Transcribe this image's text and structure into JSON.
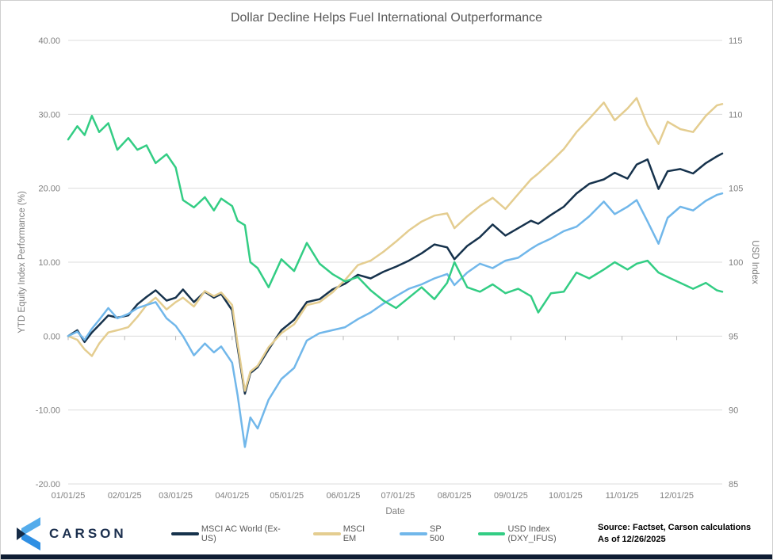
{
  "chart": {
    "title": "Dollar Decline Helps Fuel International Outperformance"
  },
  "chart_data": {
    "type": "line",
    "title": "Dollar Decline Helps Fuel International Outperformance",
    "grid": "horizontal",
    "legend_position": "bottom",
    "x_axis": {
      "label": "Date",
      "tick_labels": [
        "01/01/25",
        "02/01/25",
        "03/01/25",
        "04/01/25",
        "05/01/25",
        "06/01/25",
        "07/01/25",
        "08/01/25",
        "09/01/25",
        "10/01/25",
        "11/01/25",
        "12/01/25"
      ],
      "tick_days": [
        0,
        31,
        59,
        90,
        120,
        151,
        181,
        212,
        243,
        273,
        304,
        334
      ],
      "max_day": 359
    },
    "left_axis": {
      "label": "YTD Equity Index Performance (%)",
      "min": -20,
      "max": 40,
      "ticks": [
        40,
        30,
        20,
        10,
        0,
        -10,
        -20
      ],
      "decimals": 2
    },
    "right_axis": {
      "label": "USD Index",
      "min": 85,
      "max": 115,
      "ticks": [
        115,
        110,
        105,
        100,
        95,
        90,
        85
      ],
      "decimals": 0
    },
    "days": [
      0,
      5,
      9,
      13,
      17,
      22,
      27,
      33,
      38,
      43,
      48,
      54,
      59,
      63,
      69,
      75,
      80,
      84,
      90,
      93,
      97,
      100,
      104,
      110,
      117,
      124,
      131,
      138,
      145,
      152,
      159,
      166,
      173,
      180,
      187,
      194,
      201,
      208,
      212,
      219,
      226,
      233,
      240,
      247,
      254,
      258,
      265,
      272,
      279,
      286,
      294,
      300,
      307,
      312,
      318,
      324,
      329,
      336,
      343,
      350,
      356,
      359
    ],
    "series": [
      {
        "name": "MSCI AC World (Ex-US)",
        "axis": "left",
        "color": "#16324c",
        "values": [
          0,
          0.8,
          -0.8,
          0.5,
          1.5,
          2.8,
          2.5,
          2.8,
          4.3,
          5.3,
          6.2,
          4.8,
          5.2,
          6.3,
          4.6,
          6.0,
          5.2,
          5.7,
          3.5,
          -1.5,
          -7.8,
          -5.0,
          -4.2,
          -1.8,
          0.8,
          2.2,
          4.6,
          5.0,
          6.3,
          7.1,
          8.3,
          7.8,
          8.7,
          9.4,
          10.2,
          11.2,
          12.4,
          12.0,
          10.4,
          12.2,
          13.4,
          15.1,
          13.6,
          14.6,
          15.6,
          15.2,
          16.4,
          17.5,
          19.3,
          20.6,
          21.2,
          22.1,
          21.3,
          23.2,
          23.9,
          19.9,
          22.3,
          22.6,
          22.0,
          23.4,
          24.3,
          24.7
        ]
      },
      {
        "name": "MSCI EM",
        "axis": "left",
        "color": "#e4cd90",
        "values": [
          0,
          -0.5,
          -1.8,
          -2.7,
          -1.0,
          0.5,
          0.8,
          1.2,
          2.6,
          4.2,
          5.2,
          3.6,
          4.6,
          5.2,
          4.0,
          6.1,
          5.4,
          5.9,
          4.2,
          -1.0,
          -7.4,
          -4.8,
          -4.0,
          -1.5,
          0.4,
          1.6,
          4.2,
          4.6,
          5.9,
          7.6,
          9.6,
          10.2,
          11.4,
          12.8,
          14.3,
          15.5,
          16.3,
          16.6,
          14.6,
          16.2,
          17.6,
          18.7,
          17.2,
          19.2,
          21.2,
          22.0,
          23.6,
          25.3,
          27.6,
          29.4,
          31.6,
          29.2,
          30.8,
          32.2,
          28.5,
          26.0,
          29.0,
          28.0,
          27.6,
          29.8,
          31.2,
          31.4
        ]
      },
      {
        "name": "SP 500",
        "axis": "left",
        "color": "#71b7ea",
        "values": [
          0,
          0.6,
          -0.5,
          1.0,
          2.2,
          3.8,
          2.4,
          3.0,
          3.8,
          4.2,
          4.6,
          2.4,
          1.4,
          0.0,
          -2.6,
          -1.0,
          -2.2,
          -1.4,
          -3.6,
          -8.0,
          -15.0,
          -11.0,
          -12.5,
          -8.6,
          -5.8,
          -4.3,
          -0.6,
          0.4,
          0.8,
          1.2,
          2.3,
          3.2,
          4.4,
          5.4,
          6.4,
          7.0,
          7.8,
          8.4,
          6.9,
          8.6,
          9.8,
          9.2,
          10.2,
          10.6,
          11.8,
          12.4,
          13.2,
          14.2,
          14.8,
          16.2,
          18.2,
          16.5,
          17.5,
          18.4,
          15.5,
          12.5,
          16.0,
          17.5,
          17.0,
          18.3,
          19.1,
          19.3
        ]
      },
      {
        "name": "USD Index (DXY_IFUS)",
        "axis": "right",
        "color": "#33cd84",
        "values": [
          108.3,
          109.2,
          108.6,
          109.9,
          108.8,
          109.4,
          107.6,
          108.4,
          107.6,
          107.9,
          106.7,
          107.3,
          106.4,
          104.2,
          103.7,
          104.4,
          103.5,
          104.3,
          103.8,
          102.8,
          102.5,
          100.0,
          99.6,
          98.3,
          100.2,
          99.4,
          101.3,
          99.9,
          99.2,
          98.7,
          99.0,
          98.1,
          97.4,
          96.9,
          97.6,
          98.3,
          97.5,
          98.6,
          100.0,
          98.3,
          98.0,
          98.5,
          97.9,
          98.2,
          97.7,
          96.6,
          97.9,
          98.0,
          99.3,
          98.9,
          99.5,
          100.0,
          99.5,
          99.9,
          100.1,
          99.3,
          99.0,
          98.6,
          98.2,
          98.6,
          98.1,
          98.0
        ]
      }
    ]
  },
  "footer": {
    "logo_text": "CARSON",
    "source_line1": "Source: Factset, Carson calculations",
    "source_line2": "As of 12/26/2025"
  },
  "colors": {
    "gridline": "#dcdcdc",
    "axis_text": "#7f7f7f",
    "title_text": "#595959",
    "logo_navy": "#1b2f4e",
    "bottom_stripe": "#0f1d33"
  }
}
